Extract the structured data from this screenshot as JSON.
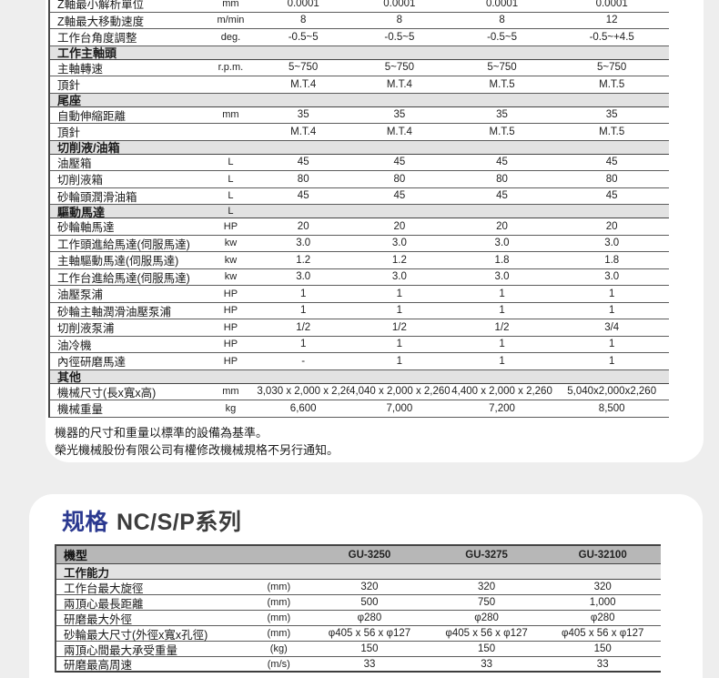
{
  "colors": {
    "page_bg": "#eeeeee",
    "card_bg": "#ffffff",
    "section_band_bg": "#e2e2e2",
    "model_header_bg": "#b7b7b7",
    "row_line": "#5c5c5c",
    "title_blue": "#2b3990",
    "title_dark": "#3c3c3c"
  },
  "main_table": {
    "rows": [
      {
        "type": "data",
        "label": "Z軸最小解析單位",
        "unit": "mm",
        "values": [
          "0.0001",
          "0.0001",
          "0.0001",
          "0.0001"
        ]
      },
      {
        "type": "data",
        "label": "Z軸最大移動速度",
        "unit": "m/min",
        "values": [
          "8",
          "8",
          "8",
          "12"
        ]
      },
      {
        "type": "data",
        "label": "工作台角度調整",
        "unit": "deg.",
        "values": [
          "-0.5~5",
          "-0.5~5",
          "-0.5~5",
          "-0.5~+4.5"
        ]
      },
      {
        "type": "section",
        "label": "工作主軸頭",
        "unit": "",
        "values": [
          "",
          "",
          "",
          ""
        ]
      },
      {
        "type": "data",
        "label": "主軸轉速",
        "unit": "r.p.m.",
        "values": [
          "5~750",
          "5~750",
          "5~750",
          "5~750"
        ]
      },
      {
        "type": "data",
        "label": "頂針",
        "unit": "",
        "values": [
          "M.T.4",
          "M.T.4",
          "M.T.5",
          "M.T.5"
        ]
      },
      {
        "type": "section",
        "label": "尾座",
        "unit": "",
        "values": [
          "",
          "",
          "",
          ""
        ]
      },
      {
        "type": "data",
        "label": "自動伸縮距離",
        "unit": "mm",
        "values": [
          "35",
          "35",
          "35",
          "35"
        ]
      },
      {
        "type": "data",
        "label": "頂針",
        "unit": "",
        "values": [
          "M.T.4",
          "M.T.4",
          "M.T.5",
          "M.T.5"
        ]
      },
      {
        "type": "section",
        "label": "切削液/油箱",
        "unit": "",
        "values": [
          "",
          "",
          "",
          ""
        ]
      },
      {
        "type": "data",
        "label": "油壓箱",
        "unit": "L",
        "values": [
          "45",
          "45",
          "45",
          "45"
        ]
      },
      {
        "type": "data",
        "label": "切削液箱",
        "unit": "L",
        "values": [
          "80",
          "80",
          "80",
          "80"
        ]
      },
      {
        "type": "data",
        "label": "砂輪頭潤滑油箱",
        "unit": "L",
        "values": [
          "45",
          "45",
          "45",
          "45"
        ]
      },
      {
        "type": "section",
        "label": "驅動馬達",
        "unit": "L",
        "values": [
          "",
          "",
          "",
          ""
        ]
      },
      {
        "type": "data",
        "label": "砂輪軸馬達",
        "unit": "HP",
        "values": [
          "20",
          "20",
          "20",
          "20"
        ]
      },
      {
        "type": "data",
        "label": "工作頭進給馬達(伺服馬達)",
        "unit": "kw",
        "values": [
          "3.0",
          "3.0",
          "3.0",
          "3.0"
        ]
      },
      {
        "type": "data",
        "label": "主軸驅動馬達(伺服馬達)",
        "unit": "kw",
        "values": [
          "1.2",
          "1.2",
          "1.8",
          "1.8"
        ]
      },
      {
        "type": "data",
        "label": "工作台進給馬達(伺服馬達)",
        "unit": "kw",
        "values": [
          "3.0",
          "3.0",
          "3.0",
          "3.0"
        ]
      },
      {
        "type": "data",
        "label": "油壓泵浦",
        "unit": "HP",
        "values": [
          "1",
          "1",
          "1",
          "1"
        ]
      },
      {
        "type": "data",
        "label": "砂輪主軸潤滑油壓泵浦",
        "unit": "HP",
        "values": [
          "1",
          "1",
          "1",
          "1"
        ]
      },
      {
        "type": "data",
        "label": "切削液泵浦",
        "unit": "HP",
        "values": [
          "1/2",
          "1/2",
          "1/2",
          "3/4"
        ]
      },
      {
        "type": "data",
        "label": "油冷機",
        "unit": "HP",
        "values": [
          "1",
          "1",
          "1",
          "1"
        ]
      },
      {
        "type": "data",
        "label": "內徑研磨馬達",
        "unit": "HP",
        "values": [
          "-",
          "1",
          "1",
          "1"
        ]
      },
      {
        "type": "section",
        "label": "其他",
        "unit": "",
        "values": [
          "",
          "",
          "",
          ""
        ]
      },
      {
        "type": "data",
        "label": "機械尺寸(長x寬x高)",
        "unit": "mm",
        "values": [
          "3,030 x 2,000 x 2,260",
          "4,040 x 2,000 x 2,260",
          "4,400 x 2,000 x 2,260",
          "5,040x2,000x2,260"
        ]
      },
      {
        "type": "data",
        "label": "機械重量",
        "unit": "kg",
        "values": [
          "6,600",
          "7,000",
          "7,200",
          "8,500"
        ]
      }
    ]
  },
  "notes": [
    "機器的尺寸和重量以標準的設備為基準。",
    "榮光機械股份有限公司有權修改機械規格不另行通知。"
  ],
  "section2": {
    "title_highlight": "规格",
    "title_series": "NC/S/P系列",
    "table": {
      "header_label": "機型",
      "models": [
        "GU-3250",
        "GU-3275",
        "GU-32100"
      ],
      "rows": [
        {
          "type": "section",
          "label": "工作能力",
          "unit": "",
          "values": [
            "",
            "",
            ""
          ]
        },
        {
          "type": "data",
          "label": "工作台最大旋徑",
          "unit": "(mm)",
          "values": [
            "320",
            "320",
            "320"
          ]
        },
        {
          "type": "data",
          "label": "兩頂心最長距離",
          "unit": "(mm)",
          "values": [
            "500",
            "750",
            "1,000"
          ]
        },
        {
          "type": "data",
          "label": "研磨最大外徑",
          "unit": "(mm)",
          "values": [
            "φ280",
            "φ280",
            "φ280"
          ]
        },
        {
          "type": "data",
          "label": "砂輪最大尺寸(外徑x寬x孔徑)",
          "unit": "(mm)",
          "values": [
            "φ405 x 56 x φ127",
            "φ405 x 56 x φ127",
            "φ405 x 56 x φ127"
          ]
        },
        {
          "type": "data",
          "label": "兩頂心間最大承受重量",
          "unit": "(kg)",
          "values": [
            "150",
            "150",
            "150"
          ]
        },
        {
          "type": "data",
          "label": "研磨最高周速",
          "unit": "(m/s)",
          "values": [
            "33",
            "33",
            "33"
          ]
        }
      ]
    }
  }
}
